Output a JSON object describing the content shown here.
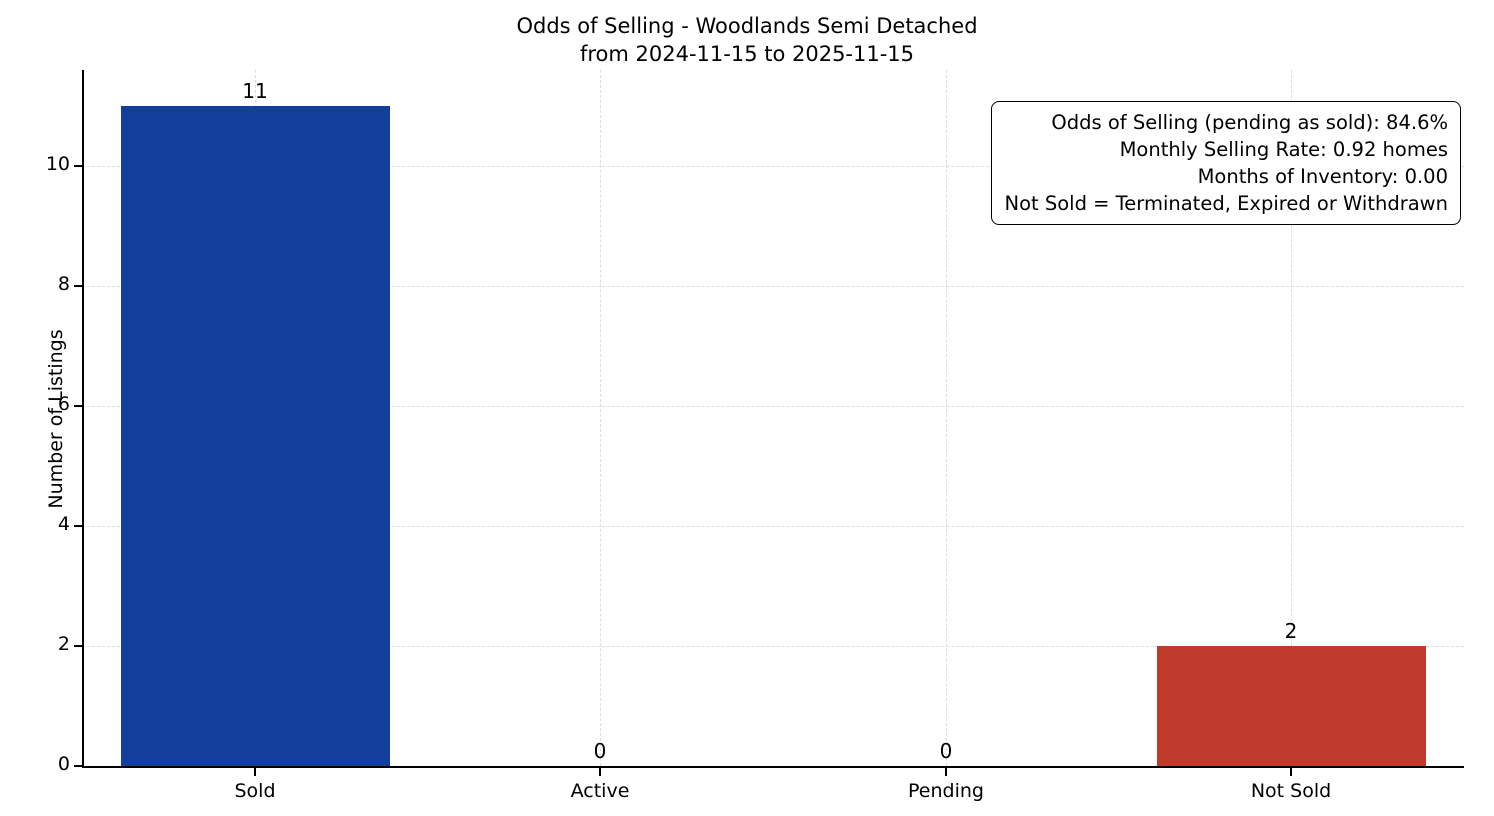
{
  "chart_data": {
    "type": "bar",
    "title_line1": "Odds of Selling - Woodlands Semi Detached",
    "title_line2": "from 2024-11-15 to 2025-11-15",
    "ylabel": "Number of Listings",
    "xlabel": "",
    "categories": [
      "Sold",
      "Active",
      "Pending",
      "Not Sold"
    ],
    "values": [
      11,
      0,
      0,
      2
    ],
    "value_labels": [
      "11",
      "0",
      "0",
      "2"
    ],
    "bar_colors": [
      "#123f9b",
      "#123f9b",
      "#123f9b",
      "#bf3a2b"
    ],
    "yticks": [
      0,
      2,
      4,
      6,
      8,
      10
    ],
    "ylim": [
      0,
      11.6
    ],
    "grid": "dashed, both axes",
    "legend_position": "none",
    "annotation": {
      "lines": [
        "Odds of Selling (pending as sold): 84.6%",
        "Monthly Selling Rate: 0.92 homes",
        "Months of Inventory: 0.00",
        "Not Sold = Terminated, Expired or Withdrawn"
      ],
      "position": "upper right"
    }
  }
}
